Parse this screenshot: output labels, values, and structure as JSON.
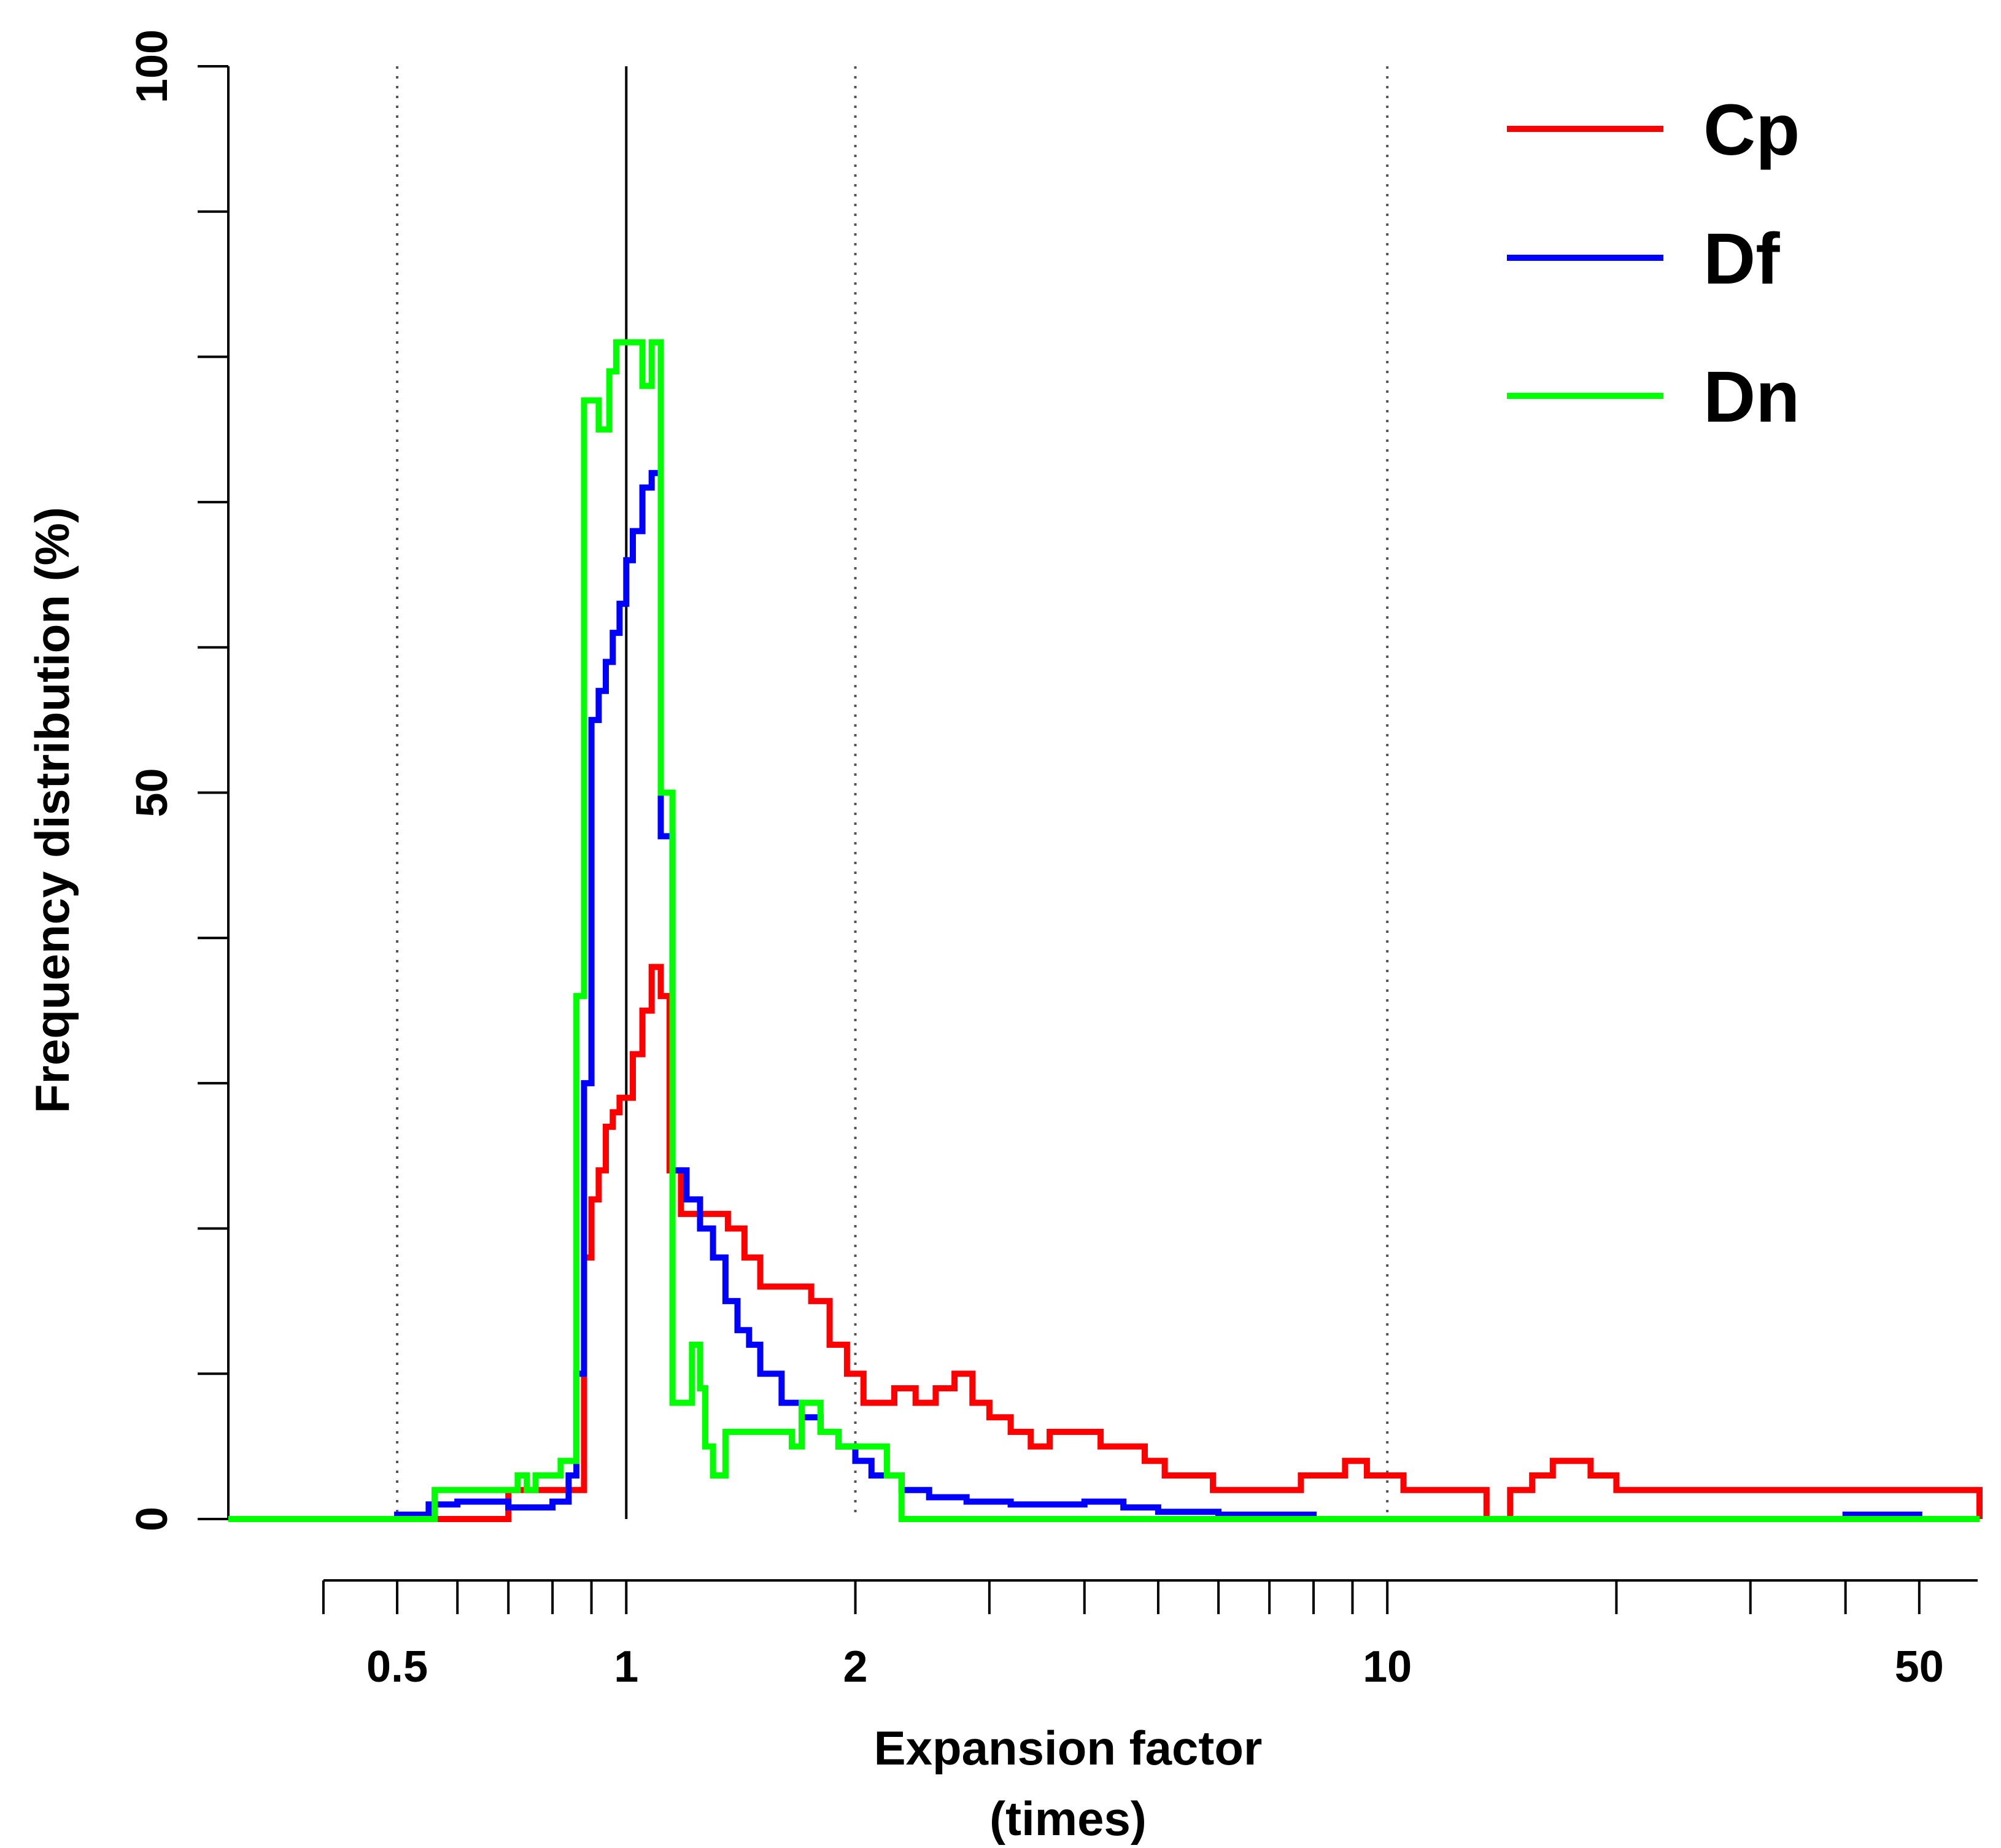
{
  "chart_data": {
    "type": "line",
    "style": "step",
    "title": "",
    "xlabel": "Expansion factor",
    "xlabel_units": "(times)",
    "ylabel": "Frequency distribution (%)",
    "xscale": "log",
    "xlim": [
      0.3,
      60
    ],
    "ylim": [
      0,
      100
    ],
    "y_ticks": [
      0,
      10,
      20,
      30,
      40,
      50,
      60,
      70,
      80,
      90,
      100
    ],
    "y_tick_labels": [
      "0",
      "50",
      "100"
    ],
    "y_tick_label_values": [
      0,
      50,
      100
    ],
    "x_major_ticks": [
      0.5,
      1,
      2,
      10,
      50
    ],
    "x_tick_labels": [
      "0.5",
      "1",
      "2",
      "10",
      "50"
    ],
    "x_minor_ticks": [
      0.4,
      0.6,
      0.7,
      0.8,
      0.9,
      3,
      4,
      5,
      6,
      7,
      8,
      9,
      20,
      30,
      40
    ],
    "grid_x_dotted": [
      0.5,
      2,
      10
    ],
    "reference_line_x": 1,
    "legend_position": "top-right",
    "series": [
      {
        "name": "Cp",
        "color": "#ff0000",
        "x": [
          0.3,
          0.54,
          0.7,
          0.85,
          0.88,
          0.9,
          0.92,
          0.94,
          0.96,
          0.98,
          1.0,
          1.02,
          1.05,
          1.08,
          1.11,
          1.14,
          1.18,
          1.24,
          1.3,
          1.36,
          1.43,
          1.5,
          1.58,
          1.66,
          1.75,
          1.85,
          1.95,
          2.05,
          2.15,
          2.25,
          2.4,
          2.55,
          2.7,
          2.85,
          3.0,
          3.2,
          3.4,
          3.6,
          3.9,
          4.2,
          4.5,
          4.8,
          5.1,
          5.5,
          5.9,
          6.3,
          6.7,
          7.2,
          7.7,
          8.2,
          8.8,
          9.4,
          10.0,
          10.5,
          13.5,
          14.5,
          15.5,
          16.5,
          18.5,
          20.0,
          60
        ],
        "y": [
          0,
          0,
          2,
          2,
          18,
          22,
          24,
          27,
          28,
          29,
          29,
          32,
          35,
          38,
          36,
          24,
          21,
          21,
          21,
          20,
          18,
          16,
          16,
          16,
          15,
          12,
          10,
          8,
          8,
          9,
          8,
          9,
          10,
          8,
          7,
          6,
          5,
          6,
          6,
          5,
          5,
          4,
          3,
          3,
          2,
          2,
          2,
          2,
          3,
          3,
          4,
          3,
          3,
          2,
          0,
          2,
          3,
          4,
          3,
          2,
          0
        ]
      },
      {
        "name": "Df",
        "color": "#0000ff",
        "x": [
          0.3,
          0.5,
          0.55,
          0.6,
          0.7,
          0.8,
          0.84,
          0.86,
          0.88,
          0.9,
          0.92,
          0.94,
          0.96,
          0.98,
          1.0,
          1.02,
          1.05,
          1.08,
          1.11,
          1.15,
          1.2,
          1.25,
          1.3,
          1.35,
          1.4,
          1.45,
          1.5,
          1.6,
          1.7,
          1.8,
          1.9,
          2.0,
          2.1,
          2.3,
          2.5,
          2.8,
          3.2,
          3.6,
          4.0,
          4.5,
          5.0,
          6.0,
          8.0,
          9.0,
          40.0,
          50.0,
          60
        ],
        "y": [
          0,
          0.3,
          1,
          1.2,
          0.8,
          1.2,
          3,
          10,
          30,
          55,
          57,
          59,
          61,
          63,
          66,
          68,
          71,
          72,
          47,
          24,
          22,
          20,
          18,
          15,
          13,
          12,
          10,
          8,
          7,
          6,
          5,
          4,
          3,
          2,
          1.5,
          1.2,
          1.0,
          1.0,
          1.2,
          0.8,
          0.5,
          0.3,
          0,
          0,
          0.3,
          0,
          0
        ]
      },
      {
        "name": "Dn",
        "color": "#00ff00",
        "x": [
          0.3,
          0.56,
          0.72,
          0.74,
          0.76,
          0.82,
          0.86,
          0.88,
          0.92,
          0.95,
          0.97,
          1.0,
          1.05,
          1.08,
          1.11,
          1.15,
          1.22,
          1.25,
          1.27,
          1.3,
          1.35,
          1.4,
          1.5,
          1.6,
          1.65,
          1.7,
          1.8,
          1.9,
          2.0,
          2.2,
          2.3,
          60
        ],
        "y": [
          0,
          2,
          3,
          2,
          3,
          4,
          36,
          77,
          75,
          79,
          81,
          81,
          78,
          81,
          50,
          8,
          12,
          9,
          5,
          3,
          6,
          6,
          6,
          6,
          5,
          8,
          6,
          5,
          5,
          3,
          0,
          0
        ]
      }
    ]
  }
}
